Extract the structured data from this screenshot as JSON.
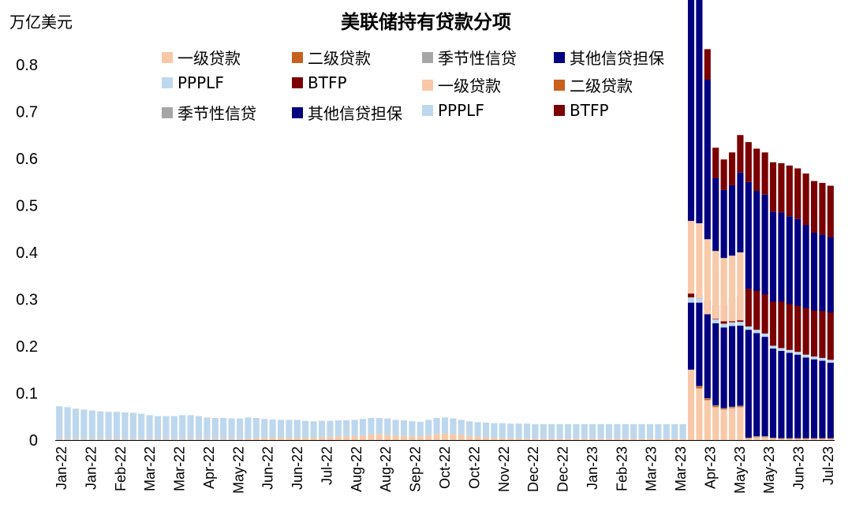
{
  "chart_data": {
    "type": "bar",
    "stacked": true,
    "title": "美联储持有贷款分项",
    "ylabel": "万亿美元",
    "ylim": [
      0,
      0.8
    ],
    "yticks": [
      "0",
      "0.1",
      "0.2",
      "0.3",
      "0.4",
      "0.5",
      "0.6",
      "0.7",
      "0.8"
    ],
    "xtick_labels": [
      "Jan-22",
      "Jan-22",
      "Feb-22",
      "Mar-22",
      "Mar-22",
      "Apr-22",
      "May-22",
      "Jun-22",
      "Jun-22",
      "Jul-22",
      "Aug-22",
      "Aug-22",
      "Sep-22",
      "Oct-22",
      "Oct-22",
      "Nov-22",
      "Dec-22",
      "Dec-22",
      "Jan-23",
      "Feb-23",
      "Mar-23",
      "Mar-23",
      "Apr-23",
      "May-23",
      "May-23",
      "Jun-23",
      "Jul-23"
    ],
    "legend": [
      "一级贷款",
      "二级贷款",
      "季节性信贷",
      "其他信贷担保",
      "PPPLF",
      "BTFP",
      "一级贷款",
      "二级贷款",
      "季节性信贷",
      "其他信贷担保",
      "PPPLF",
      "BTFP"
    ],
    "series_names": [
      "一级贷款",
      "二级贷款",
      "季节性信贷",
      "其他信贷担保",
      "PPPLF",
      "BTFP"
    ],
    "colors": [
      "#F8C8A8",
      "#C8601E",
      "#A6A6A6",
      "#000080",
      "#BDD7EE",
      "#7B0000"
    ],
    "stacks": [
      [
        0.002,
        0,
        0,
        0,
        0.07,
        0
      ],
      [
        0.002,
        0,
        0,
        0,
        0.068,
        0
      ],
      [
        0.002,
        0,
        0,
        0,
        0.065,
        0
      ],
      [
        0.002,
        0,
        0,
        0,
        0.063,
        0
      ],
      [
        0.002,
        0,
        0,
        0,
        0.061,
        0
      ],
      [
        0.002,
        0,
        0,
        0,
        0.059,
        0
      ],
      [
        0.002,
        0,
        0,
        0,
        0.058,
        0
      ],
      [
        0.002,
        0,
        0,
        0,
        0.058,
        0
      ],
      [
        0.002,
        0,
        0,
        0,
        0.057,
        0
      ],
      [
        0.002,
        0,
        0,
        0,
        0.056,
        0
      ],
      [
        0.002,
        0,
        0,
        0,
        0.054,
        0
      ],
      [
        0.002,
        0,
        0,
        0,
        0.051,
        0
      ],
      [
        0.002,
        0,
        0,
        0,
        0.049,
        0
      ],
      [
        0.002,
        0,
        0,
        0,
        0.049,
        0
      ],
      [
        0.002,
        0,
        0,
        0,
        0.049,
        0
      ],
      [
        0.002,
        0,
        0,
        0,
        0.051,
        0
      ],
      [
        0.002,
        0,
        0,
        0,
        0.051,
        0
      ],
      [
        0.002,
        0,
        0,
        0,
        0.049,
        0
      ],
      [
        0.002,
        0,
        0,
        0,
        0.046,
        0
      ],
      [
        0.002,
        0,
        0,
        0,
        0.045,
        0
      ],
      [
        0.002,
        0,
        0,
        0,
        0.045,
        0
      ],
      [
        0.002,
        0,
        0,
        0,
        0.044,
        0
      ],
      [
        0.002,
        0,
        0,
        0,
        0.044,
        0
      ],
      [
        0.003,
        0,
        0,
        0,
        0.045,
        0
      ],
      [
        0.004,
        0,
        0,
        0,
        0.043,
        0
      ],
      [
        0.004,
        0,
        0,
        0,
        0.041,
        0
      ],
      [
        0.005,
        0,
        0,
        0,
        0.039,
        0
      ],
      [
        0.005,
        0,
        0,
        0,
        0.038,
        0
      ],
      [
        0.005,
        0,
        0,
        0,
        0.038,
        0
      ],
      [
        0.005,
        0,
        0,
        0,
        0.038,
        0
      ],
      [
        0.005,
        0,
        0,
        0,
        0.036,
        0
      ],
      [
        0.005,
        0,
        0,
        0,
        0.035,
        0
      ],
      [
        0.006,
        0,
        0,
        0,
        0.035,
        0
      ],
      [
        0.007,
        0,
        0,
        0,
        0.034,
        0
      ],
      [
        0.008,
        0,
        0,
        0,
        0.034,
        0
      ],
      [
        0.008,
        0,
        0,
        0,
        0.034,
        0
      ],
      [
        0.009,
        0,
        0,
        0,
        0.034,
        0
      ],
      [
        0.01,
        0,
        0,
        0,
        0.035,
        0
      ],
      [
        0.012,
        0,
        0,
        0,
        0.035,
        0
      ],
      [
        0.013,
        0,
        0,
        0,
        0.034,
        0
      ],
      [
        0.011,
        0,
        0,
        0,
        0.035,
        0
      ],
      [
        0.01,
        0,
        0,
        0,
        0.033,
        0
      ],
      [
        0.009,
        0,
        0,
        0,
        0.033,
        0
      ],
      [
        0.008,
        0,
        0,
        0,
        0.032,
        0
      ],
      [
        0.008,
        0,
        0,
        0,
        0.031,
        0
      ],
      [
        0.01,
        0,
        0,
        0,
        0.033,
        0
      ],
      [
        0.013,
        0,
        0,
        0,
        0.034,
        0
      ],
      [
        0.014,
        0,
        0,
        0,
        0.034,
        0
      ],
      [
        0.013,
        0,
        0,
        0,
        0.033,
        0
      ],
      [
        0.011,
        0,
        0,
        0,
        0.032,
        0
      ],
      [
        0.009,
        0,
        0,
        0,
        0.031,
        0
      ],
      [
        0.007,
        0,
        0,
        0,
        0.031,
        0
      ],
      [
        0.006,
        0,
        0,
        0,
        0.031,
        0
      ],
      [
        0.005,
        0,
        0,
        0,
        0.031,
        0
      ],
      [
        0.004,
        0,
        0,
        0,
        0.032,
        0
      ],
      [
        0.004,
        0,
        0,
        0,
        0.031,
        0
      ],
      [
        0.004,
        0,
        0,
        0,
        0.031,
        0
      ],
      [
        0.003,
        0,
        0,
        0,
        0.032,
        0
      ],
      [
        0.003,
        0,
        0,
        0,
        0.031,
        0
      ],
      [
        0.003,
        0,
        0,
        0,
        0.031,
        0
      ],
      [
        0.003,
        0,
        0,
        0,
        0.031,
        0
      ],
      [
        0.003,
        0,
        0,
        0,
        0.031,
        0
      ],
      [
        0.003,
        0,
        0,
        0,
        0.031,
        0
      ],
      [
        0.003,
        0,
        0,
        0,
        0.031,
        0
      ],
      [
        0.003,
        0,
        0,
        0,
        0.031,
        0
      ],
      [
        0.003,
        0,
        0,
        0,
        0.031,
        0
      ],
      [
        0.003,
        0,
        0,
        0,
        0.031,
        0
      ],
      [
        0.003,
        0,
        0,
        0,
        0.031,
        0
      ],
      [
        0.003,
        0,
        0,
        0,
        0.031,
        0
      ],
      [
        0.003,
        0,
        0,
        0,
        0.031,
        0
      ],
      [
        0.003,
        0,
        0,
        0,
        0.031,
        0
      ],
      [
        0.003,
        0,
        0,
        0,
        0.031,
        0
      ],
      [
        0.003,
        0,
        0,
        0,
        0.031,
        0
      ],
      [
        0.003,
        0,
        0,
        0,
        0.031,
        0
      ],
      [
        0.003,
        0,
        0,
        0,
        0.031,
        0
      ],
      [
        0.003,
        0,
        0,
        0,
        0.031,
        0
      ],
      [
        0.003,
        0,
        0,
        0,
        0.031,
        0
      ],
      [
        0.15,
        0,
        0,
        0.143,
        0.011,
        0.012
      ],
      [
        0.11,
        0.004,
        0.001,
        0.178,
        0.009,
        0.009
      ],
      [
        0.085,
        0.003,
        0.001,
        0.18,
        0.008,
        0.02
      ],
      [
        0.07,
        0.003,
        0.001,
        0.175,
        0.008,
        0.03
      ],
      [
        0.065,
        0.002,
        0.001,
        0.172,
        0.008,
        0.04
      ],
      [
        0.068,
        0.002,
        0.001,
        0.172,
        0.008,
        0.05
      ],
      [
        0.07,
        0.002,
        0.001,
        0.171,
        0.008,
        0.055
      ],
      [
        0.003,
        0.001,
        0.001,
        0.23,
        0.007,
        0.08
      ],
      [
        0.006,
        0.001,
        0.001,
        0.22,
        0.007,
        0.09
      ],
      [
        0.006,
        0.001,
        0.001,
        0.212,
        0.007,
        0.09
      ],
      [
        0.003,
        0.001,
        0.001,
        0.19,
        0.006,
        0.095
      ],
      [
        0.002,
        0.001,
        0.001,
        0.186,
        0.006,
        0.1
      ],
      [
        0.002,
        0.001,
        0.001,
        0.182,
        0.006,
        0.1
      ],
      [
        0.002,
        0.001,
        0.001,
        0.178,
        0.006,
        0.1
      ],
      [
        0.002,
        0.001,
        0.001,
        0.172,
        0.006,
        0.1
      ],
      [
        0.002,
        0.001,
        0.001,
        0.168,
        0.006,
        0.105
      ],
      [
        0.002,
        0.001,
        0.001,
        0.165,
        0.006,
        0.105
      ],
      [
        0.002,
        0.001,
        0.001,
        0.161,
        0.006,
        0.105
      ]
    ],
    "overlay": [
      [
        77,
        0.312,
        0.155,
        0.6,
        0.03
      ],
      [
        78,
        0.302,
        0.16,
        0.6,
        0.035
      ],
      [
        79,
        0.268,
        0.16,
        0.34,
        0.065
      ],
      [
        80,
        0.258,
        0.145,
        0.155,
        0.065
      ],
      [
        81,
        0.253,
        0.135,
        0.145,
        0.065
      ],
      [
        82,
        0.253,
        0.14,
        0.15,
        0.07
      ],
      [
        83,
        0.255,
        0.145,
        0.17,
        0.08
      ],
      [
        84,
        0.322,
        0.0,
        0.228,
        0.085
      ],
      [
        85,
        0.318,
        0.0,
        0.213,
        0.09
      ],
      [
        86,
        0.31,
        0.0,
        0.213,
        0.09
      ],
      [
        87,
        0.295,
        0.0,
        0.192,
        0.105
      ],
      [
        88,
        0.295,
        0.0,
        0.19,
        0.105
      ],
      [
        89,
        0.29,
        0.0,
        0.187,
        0.108
      ],
      [
        90,
        0.286,
        0.0,
        0.185,
        0.108
      ],
      [
        91,
        0.281,
        0.0,
        0.177,
        0.11
      ],
      [
        92,
        0.276,
        0.0,
        0.166,
        0.11
      ],
      [
        93,
        0.275,
        0.0,
        0.163,
        0.11
      ],
      [
        94,
        0.272,
        0.0,
        0.16,
        0.11
      ]
    ]
  }
}
